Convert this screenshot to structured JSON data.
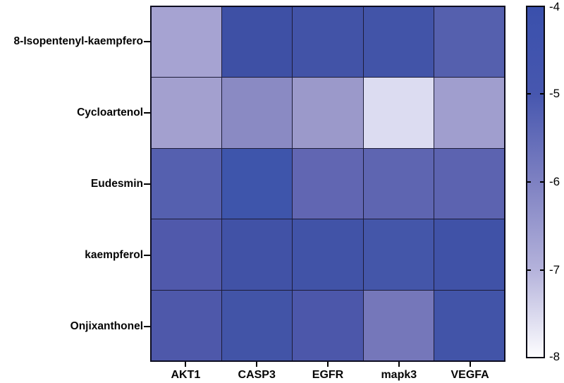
{
  "figure": {
    "background_color": "#ffffff",
    "grid_line_color": "#1c1c38",
    "axis_tick_color": "#000000",
    "label_color": "#050505"
  },
  "chart_data": {
    "type": "heatmap",
    "title": "",
    "xlabel": "",
    "ylabel": "",
    "rows": [
      "8-Isopentenyl-kaempfero",
      "Cycloartenol",
      "Eudesmin",
      "kaempferol",
      "Onjixanthonel"
    ],
    "columns": [
      "AKT1",
      "CASP3",
      "EGFR",
      "mapk3",
      "VEGFA"
    ],
    "values": [
      [
        -6.8,
        -4.3,
        -4.5,
        -4.5,
        -5.3
      ],
      [
        -6.7,
        -6.2,
        -6.5,
        -7.6,
        -6.6
      ],
      [
        -5.3,
        -4.4,
        -5.5,
        -5.4,
        -5.4
      ],
      [
        -5.2,
        -4.5,
        -4.5,
        -4.8,
        -4.4
      ],
      [
        -5.1,
        -4.6,
        -5.0,
        -5.9,
        -4.6
      ]
    ],
    "cell_colors": [
      [
        "#a6a3d2",
        "#3e50a5",
        "#4253a7",
        "#4254a8",
        "#5560ae"
      ],
      [
        "#a3a0cf",
        "#8a8ac3",
        "#9b99ca",
        "#dcdcf1",
        "#a09ece"
      ],
      [
        "#5560af",
        "#3e55ab",
        "#6166b2",
        "#5e65b1",
        "#5c63b0"
      ],
      [
        "#5059ab",
        "#4152a6",
        "#4153a7",
        "#4456a9",
        "#4052a7"
      ],
      [
        "#4e58aa",
        "#4254a7",
        "#4c57aa",
        "#7577ba",
        "#4254a8"
      ]
    ],
    "legend_position": "right",
    "colorbar": {
      "max": -4,
      "min": -8,
      "tick_labels": [
        "-4",
        "-5",
        "-6",
        "-7",
        "-8"
      ],
      "gradient_top_to_bottom": [
        "#3a50ac",
        "#4757af",
        "#7e81c2",
        "#b4b2db",
        "#fdfdff"
      ]
    }
  }
}
